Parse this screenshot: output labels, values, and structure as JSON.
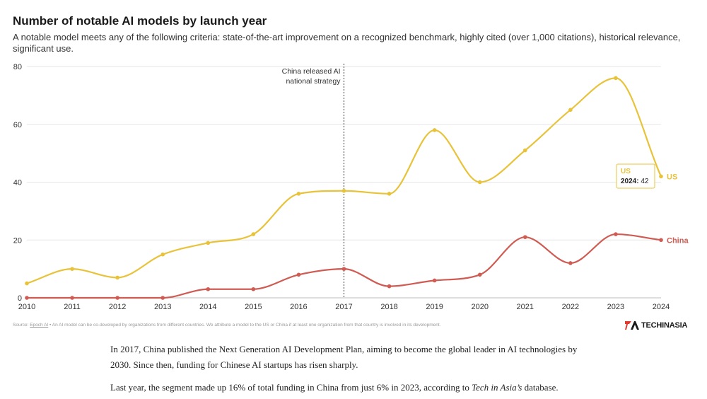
{
  "title": "Number of notable AI models by launch year",
  "subtitle": "A notable model meets any of the following criteria: state-of-the-art improvement on a recognized benchmark, highly cited (over 1,000 citations), historical relevance, significant use.",
  "chart_data": {
    "type": "line",
    "x": [
      2010,
      2011,
      2012,
      2013,
      2014,
      2015,
      2016,
      2017,
      2018,
      2019,
      2020,
      2021,
      2022,
      2023,
      2024
    ],
    "series": [
      {
        "name": "US",
        "color": "#e8c33a",
        "values": [
          5,
          10,
          7,
          15,
          19,
          22,
          36,
          37,
          36,
          58,
          40,
          51,
          65,
          76,
          42
        ]
      },
      {
        "name": "China",
        "color": "#cf5b52",
        "values": [
          0,
          0,
          0,
          0,
          3,
          3,
          8,
          10,
          4,
          6,
          8,
          21,
          12,
          22,
          20
        ]
      }
    ],
    "ylim": [
      0,
      80
    ],
    "yticks": [
      0,
      20,
      40,
      60,
      80
    ],
    "grid": true,
    "legend": "inline labels at line ends",
    "annotation": {
      "x": 2017,
      "text_line1": "China released AI",
      "text_line2": "national strategy"
    },
    "tooltip": {
      "series": "US",
      "label": "2024:",
      "value": "42"
    }
  },
  "footnote": {
    "source_prefix": "Source: ",
    "source_name": "Epoch AI",
    "note": " • An AI model can be co-developed by organizations from different countries. We attribute a model to the US or China if at least one organization from that country is involved in its development."
  },
  "logo": {
    "text": "TECHINASIA"
  },
  "article": {
    "p1": "In 2017, China published the Next Generation AI Development Plan, aiming to become the global leader in AI technologies by 2030. Since then, funding for Chinese AI startups has risen sharply.",
    "p2_before": "Last year, the segment made up 16% of total funding in China from just 6% in 2023, according to ",
    "p2_italic": "Tech in Asia’s",
    "p2_after": " database."
  }
}
